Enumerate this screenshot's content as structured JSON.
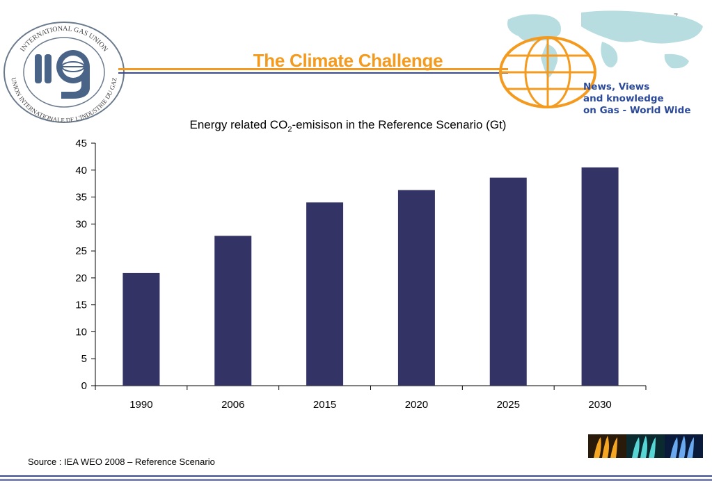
{
  "slide": {
    "page_number": "7",
    "title": "The Climate Challenge",
    "tagline": [
      "News, Views",
      "and knowledge",
      "on Gas - World Wide"
    ],
    "source": "Source : IEA WEO 2008 – Reference Scenario"
  },
  "logo": {
    "ring_text_top": "INTERNATIONAL GAS UNION",
    "ring_text_bottom": "UNION INTERNATIONALE DE L'INDUSTRIE DU GAZ"
  },
  "colors": {
    "title_orange": "#f39a1f",
    "bar_navy": "#333366",
    "tagline_blue": "#2c4a9a"
  },
  "chart_data": {
    "type": "bar",
    "title_prefix": "Energy related CO",
    "title_subscript": "2",
    "title_suffix": "-emisison in the Reference Scenario (Gt)",
    "categories": [
      "1990",
      "2006",
      "2015",
      "2020",
      "2025",
      "2030"
    ],
    "values": [
      20.9,
      27.8,
      34.0,
      36.3,
      38.6,
      40.5
    ],
    "ylim": [
      0,
      45
    ],
    "yticks": [
      0,
      5,
      10,
      15,
      20,
      25,
      30,
      35,
      40,
      45
    ],
    "grid": false,
    "legend": "none"
  }
}
